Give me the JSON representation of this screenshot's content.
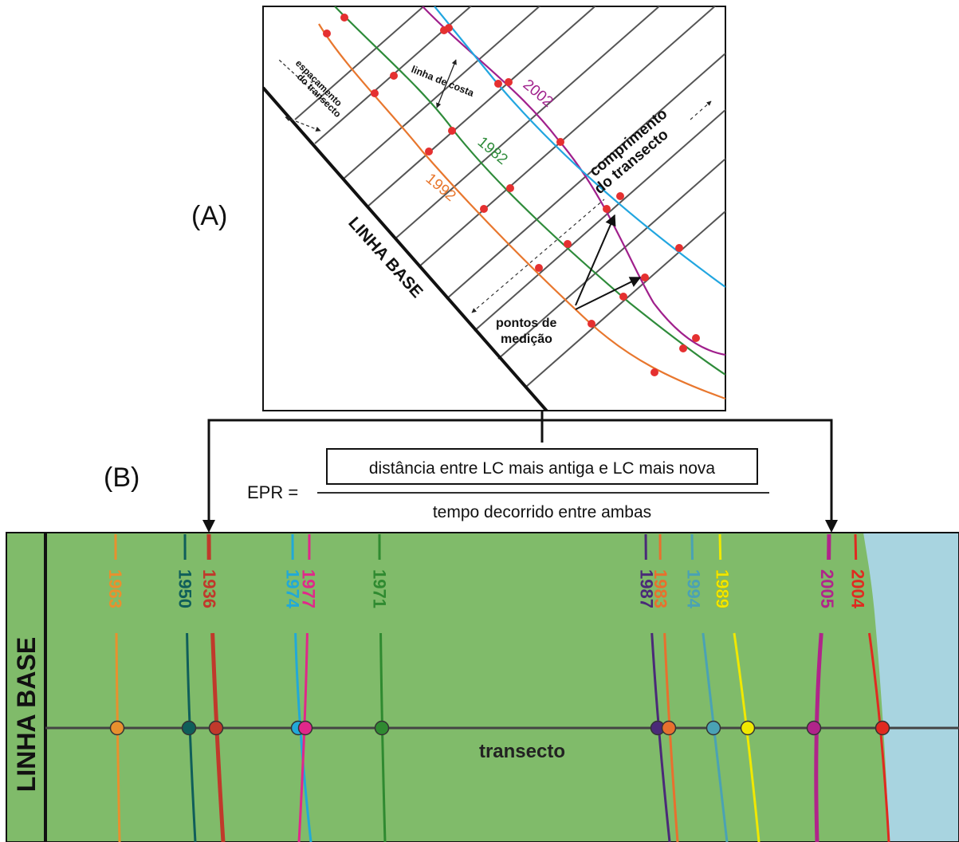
{
  "panel_a": {
    "label": "(A)",
    "baseline_label": "LINHA BASE",
    "transect_spacing_label": [
      "espaçamento",
      "do transecto"
    ],
    "shoreline_label": "linha de costa",
    "transect_length_label": [
      "comprimento",
      "do transecto"
    ],
    "measure_points_label": [
      "pontos de",
      "medição"
    ],
    "shorelines": [
      {
        "year": "1992",
        "color": "#e8772e"
      },
      {
        "year": "1982",
        "color": "#2e8b3a"
      },
      {
        "year": "2002",
        "color": "#a0208c"
      },
      {
        "year": "",
        "color": "#22a6e0"
      }
    ]
  },
  "panel_b": {
    "label": "(B)",
    "formula_lhs": "EPR =",
    "formula_numerator": "distância entre LC mais antiga e LC mais nova",
    "formula_denominator": "tempo decorrido entre ambas",
    "baseline_label": "LINHA BASE",
    "transect_label": "transecto",
    "colors": {
      "land": "#80bb6a",
      "sea": "#a8d4e0",
      "transect": "#444444"
    },
    "shorelines": [
      {
        "year": "1963",
        "color": "#e8902e"
      },
      {
        "year": "1950",
        "color": "#0f5e5a"
      },
      {
        "year": "1936",
        "color": "#c0392b"
      },
      {
        "year": "1974",
        "color": "#21a9d8"
      },
      {
        "year": "1977",
        "color": "#e0288a"
      },
      {
        "year": "1971",
        "color": "#2f8a30"
      },
      {
        "year": "1987",
        "color": "#4a2a78"
      },
      {
        "year": "1983",
        "color": "#e8702e"
      },
      {
        "year": "1994",
        "color": "#4aa2b4"
      },
      {
        "year": "1989",
        "color": "#f0e800"
      },
      {
        "year": "2005",
        "color": "#b0258a"
      },
      {
        "year": "2004",
        "color": "#e02a20"
      }
    ]
  }
}
